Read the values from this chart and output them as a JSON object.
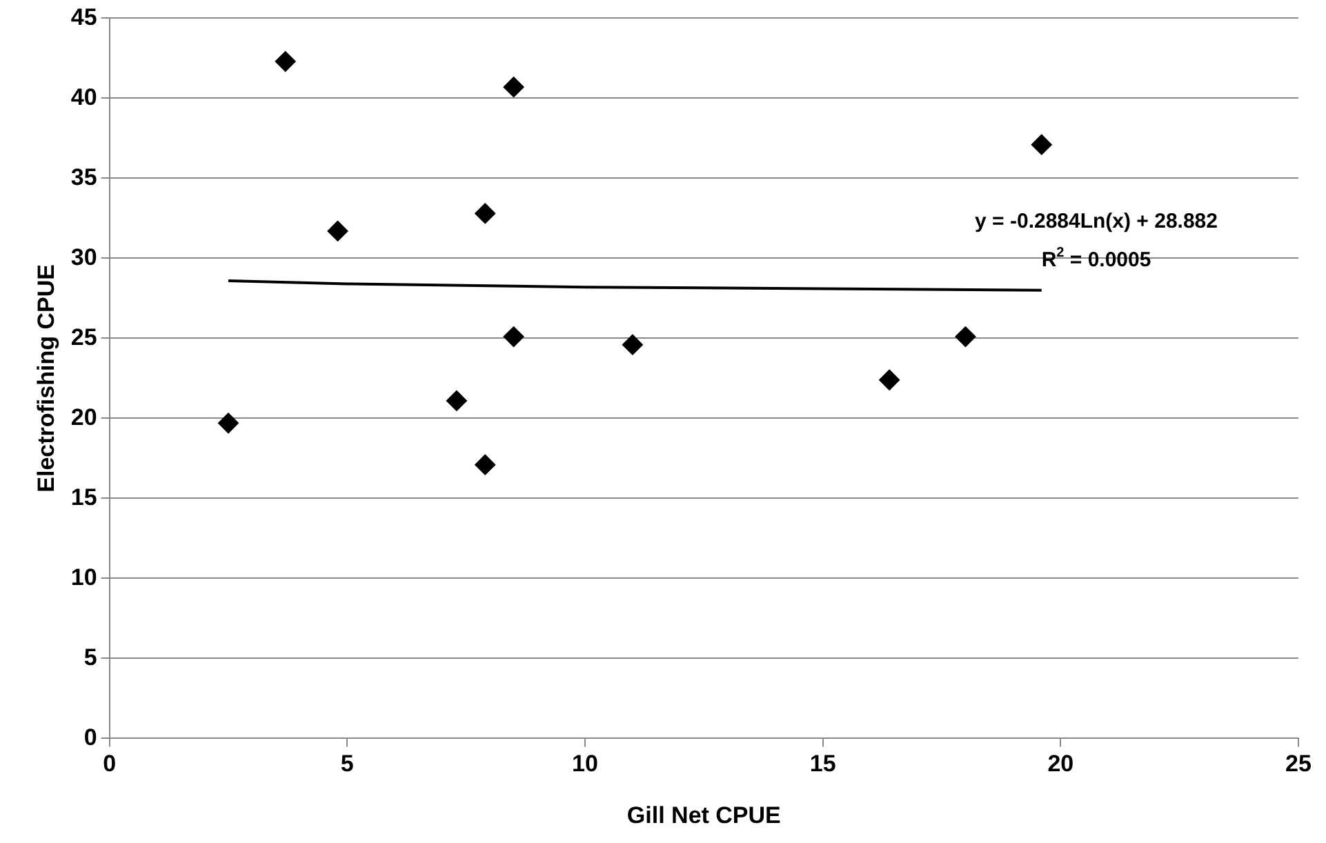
{
  "chart_data": {
    "type": "scatter",
    "xlabel": "Gill Net CPUE",
    "ylabel": "Electrofishing CPUE",
    "xlim": [
      0,
      25
    ],
    "xticks": [
      0,
      5,
      10,
      15,
      20,
      25
    ],
    "ylim": [
      0,
      45
    ],
    "yticks": [
      0,
      5,
      10,
      15,
      20,
      25,
      30,
      35,
      40,
      45
    ],
    "grid": "y",
    "legend": false,
    "marker": "diamond",
    "series": [
      {
        "type": "scatter",
        "color": "#000000",
        "x": [
          2.5,
          3.7,
          4.8,
          7.3,
          7.9,
          7.9,
          8.5,
          8.5,
          11,
          16.4,
          18,
          19.6
        ],
        "values": [
          19.7,
          42.3,
          31.7,
          21.1,
          32.8,
          17.1,
          40.7,
          25.1,
          24.6,
          22.4,
          25.1,
          37.1
        ]
      },
      {
        "type": "line",
        "marker": "none",
        "color": "#000000",
        "x": [
          2.5,
          5,
          10,
          15,
          19.6
        ],
        "values": [
          28.6,
          28.4,
          28.2,
          28.1,
          28.0
        ]
      }
    ],
    "annotations": [
      "y = -0.2884Ln(x) + 28.882",
      "R$^{2}$ = 0.0005"
    ]
  }
}
